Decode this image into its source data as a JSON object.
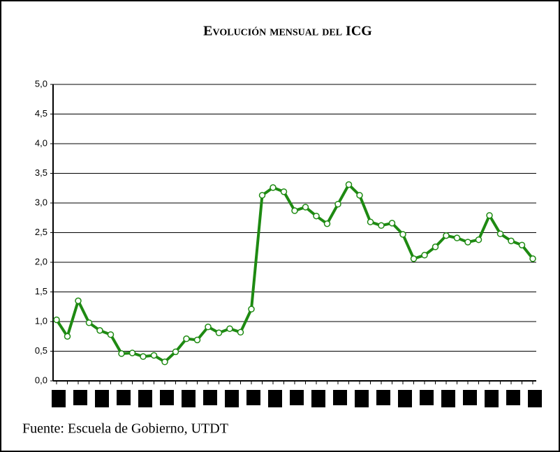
{
  "chart_data": {
    "type": "line",
    "title": "Evolución mensual del ICG",
    "source": "Fuente: Escuela de Gobierno, UTDT",
    "categories": [
      null,
      null,
      null,
      null,
      null,
      null,
      null,
      null,
      null,
      null,
      null,
      null,
      null,
      null,
      null,
      null,
      null,
      null,
      null,
      null,
      null,
      null,
      null,
      null,
      null,
      null,
      null,
      null,
      null,
      null,
      null,
      null,
      null,
      null,
      null,
      null,
      null,
      null,
      null,
      null,
      null,
      null,
      null,
      null,
      null
    ],
    "series": [
      {
        "name": "ICG",
        "color": "#1e8a12",
        "values": [
          1.03,
          0.75,
          1.35,
          0.98,
          0.85,
          0.78,
          0.46,
          0.47,
          0.41,
          0.43,
          0.32,
          0.49,
          0.71,
          0.69,
          0.91,
          0.81,
          0.88,
          0.82,
          1.21,
          3.13,
          3.26,
          3.19,
          2.87,
          2.93,
          2.78,
          2.65,
          2.98,
          3.31,
          3.13,
          2.68,
          2.62,
          2.66,
          2.47,
          2.06,
          2.12,
          2.26,
          2.45,
          2.41,
          2.34,
          2.38,
          2.79,
          2.48,
          2.36,
          2.29,
          2.06
        ]
      }
    ],
    "ylim": [
      0,
      5
    ],
    "yticks": [
      {
        "value": 0,
        "label": "0,0"
      },
      {
        "value": 0.5,
        "label": "0,5"
      },
      {
        "value": 1,
        "label": "1,0"
      },
      {
        "value": 1.5,
        "label": "1,5"
      },
      {
        "value": 2,
        "label": "2,0"
      },
      {
        "value": 2.5,
        "label": "2,5"
      },
      {
        "value": 3,
        "label": "3,0"
      },
      {
        "value": 3.5,
        "label": "3,5"
      },
      {
        "value": 4,
        "label": "4,0"
      },
      {
        "value": 4.5,
        "label": "4,5"
      },
      {
        "value": 5,
        "label": "5,0"
      }
    ],
    "grid": true
  }
}
